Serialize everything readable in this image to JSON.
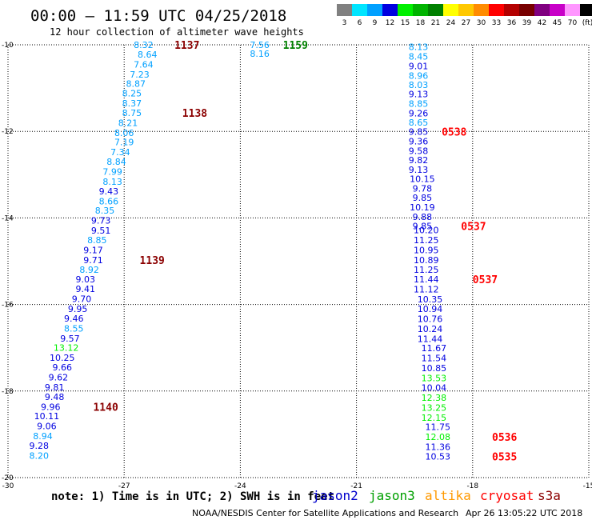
{
  "header": {
    "title": "00:00 – 11:59 UTC 04/25/2018",
    "subtitle": "12 hour collection of altimeter wave heights"
  },
  "note": "note: 1) Time is in UTC; 2) SWH is in feet",
  "footer": {
    "credit": "NOAA/NESDIS Center for Satellite Applications and Research",
    "timestamp": "Apr 26 13:05:22 UTC 2018"
  },
  "color_scale": {
    "labels": [
      "3",
      "6",
      "9",
      "12",
      "15",
      "18",
      "21",
      "24",
      "27",
      "30",
      "33",
      "36",
      "39",
      "42",
      "45",
      "70",
      "(ft)"
    ],
    "colors": [
      "#808080",
      "#00e5ff",
      "#00a0ff",
      "#0000e0",
      "#00f000",
      "#00b400",
      "#008000",
      "#ffff00",
      "#ffc800",
      "#ff8c00",
      "#ff0000",
      "#b40000",
      "#780000",
      "#800080",
      "#c800c8",
      "#ff96ff",
      "#000000"
    ]
  },
  "satellites": [
    {
      "name": "jason2",
      "color": "#0000cc"
    },
    {
      "name": "jason3",
      "color": "#00a000"
    },
    {
      "name": "altika",
      "color": "#ff9900"
    },
    {
      "name": "cryosat",
      "color": "#ff0000"
    },
    {
      "name": "s3a",
      "color": "#8b0000"
    }
  ],
  "chart_data": {
    "type": "scatter",
    "xlim": [
      -30,
      -15
    ],
    "ylim": [
      -20,
      -10
    ],
    "x_ticks": [
      "-30",
      "-27",
      "-24",
      "-21",
      "-18",
      "-15"
    ],
    "y_ticks": [
      "-10",
      "-12",
      "-14",
      "-16",
      "-18",
      "-20"
    ],
    "x_tick_values": [
      -30,
      -27,
      -24,
      -21,
      -18,
      -15
    ],
    "y_tick_values": [
      -10,
      -12,
      -14,
      -16,
      -18,
      -20
    ],
    "grid": true,
    "series": [
      {
        "points": [
          {
            "x": -26.5,
            "y": -10.0,
            "v": "8.32",
            "c": "#00a0ff"
          },
          {
            "x": -26.4,
            "y": -10.22,
            "v": "8.64",
            "c": "#00a0ff"
          },
          {
            "x": -26.5,
            "y": -10.45,
            "v": "7.64",
            "c": "#00a0ff"
          },
          {
            "x": -26.6,
            "y": -10.68,
            "v": "7.23",
            "c": "#00a0ff"
          },
          {
            "x": -26.7,
            "y": -10.9,
            "v": "8.87",
            "c": "#00a0ff"
          },
          {
            "x": -26.8,
            "y": -11.12,
            "v": "8.25",
            "c": "#00a0ff"
          },
          {
            "x": -26.8,
            "y": -11.35,
            "v": "8.37",
            "c": "#00a0ff"
          },
          {
            "x": -26.8,
            "y": -11.57,
            "v": "8.75",
            "c": "#00a0ff"
          },
          {
            "x": -26.9,
            "y": -11.8,
            "v": "8.21",
            "c": "#00a0ff"
          },
          {
            "x": -27.0,
            "y": -12.03,
            "v": "8.06",
            "c": "#00a0ff"
          },
          {
            "x": -27.0,
            "y": -12.25,
            "v": "7.19",
            "c": "#00a0ff"
          },
          {
            "x": -27.1,
            "y": -12.48,
            "v": "7.34",
            "c": "#00a0ff"
          },
          {
            "x": -27.2,
            "y": -12.7,
            "v": "8.84",
            "c": "#00a0ff"
          },
          {
            "x": -27.3,
            "y": -12.93,
            "v": "7.99",
            "c": "#00a0ff"
          },
          {
            "x": -27.3,
            "y": -13.16,
            "v": "8.13",
            "c": "#00a0ff"
          },
          {
            "x": -27.4,
            "y": -13.38,
            "v": "9.43",
            "c": "#0000e0"
          },
          {
            "x": -27.4,
            "y": -13.61,
            "v": "8.66",
            "c": "#00a0ff"
          },
          {
            "x": -27.5,
            "y": -13.83,
            "v": "8.35",
            "c": "#00a0ff"
          },
          {
            "x": -27.6,
            "y": -14.06,
            "v": "9.73",
            "c": "#0000e0"
          },
          {
            "x": -27.6,
            "y": -14.29,
            "v": "9.51",
            "c": "#0000e0"
          },
          {
            "x": -27.7,
            "y": -14.51,
            "v": "8.85",
            "c": "#00a0ff"
          },
          {
            "x": -27.8,
            "y": -14.74,
            "v": "9.17",
            "c": "#0000e0"
          },
          {
            "x": -27.8,
            "y": -14.97,
            "v": "9.71",
            "c": "#0000e0"
          },
          {
            "x": -27.9,
            "y": -15.19,
            "v": "8.92",
            "c": "#00a0ff"
          },
          {
            "x": -28.0,
            "y": -15.42,
            "v": "9.03",
            "c": "#0000e0"
          },
          {
            "x": -28.0,
            "y": -15.64,
            "v": "9.41",
            "c": "#0000e0"
          },
          {
            "x": -28.1,
            "y": -15.87,
            "v": "9.70",
            "c": "#0000e0"
          },
          {
            "x": -28.2,
            "y": -16.1,
            "v": "9.95",
            "c": "#0000e0"
          },
          {
            "x": -28.3,
            "y": -16.32,
            "v": "9.46",
            "c": "#0000e0"
          },
          {
            "x": -28.3,
            "y": -16.55,
            "v": "8.55",
            "c": "#00a0ff"
          },
          {
            "x": -28.4,
            "y": -16.78,
            "v": "9.57",
            "c": "#0000e0"
          },
          {
            "x": -28.5,
            "y": -17.0,
            "v": "13.12",
            "c": "#00f000"
          },
          {
            "x": -28.6,
            "y": -17.23,
            "v": "10.25",
            "c": "#0000e0"
          },
          {
            "x": -28.6,
            "y": -17.45,
            "v": "9.66",
            "c": "#0000e0"
          },
          {
            "x": -28.7,
            "y": -17.68,
            "v": "9.62",
            "c": "#0000e0"
          },
          {
            "x": -28.8,
            "y": -17.91,
            "v": "9.81",
            "c": "#0000e0"
          },
          {
            "x": -28.8,
            "y": -18.13,
            "v": "9.48",
            "c": "#0000e0"
          },
          {
            "x": -28.9,
            "y": -18.36,
            "v": "9.96",
            "c": "#0000e0"
          },
          {
            "x": -29.0,
            "y": -18.58,
            "v": "10.11",
            "c": "#0000e0"
          },
          {
            "x": -29.0,
            "y": -18.81,
            "v": "9.06",
            "c": "#0000e0"
          },
          {
            "x": -29.1,
            "y": -19.04,
            "v": "8.94",
            "c": "#00a0ff"
          },
          {
            "x": -29.2,
            "y": -19.26,
            "v": "9.28",
            "c": "#0000e0"
          },
          {
            "x": -29.2,
            "y": -19.49,
            "v": "8.20",
            "c": "#00a0ff"
          }
        ]
      },
      {
        "points": [
          {
            "x": -23.5,
            "y": -10.0,
            "v": "7.56",
            "c": "#00a0ff"
          },
          {
            "x": -23.5,
            "y": -10.2,
            "v": "8.16",
            "c": "#00a0ff"
          }
        ]
      },
      {
        "points": [
          {
            "x": -19.4,
            "y": -10.05,
            "v": "8.13",
            "c": "#00a0ff"
          },
          {
            "x": -19.4,
            "y": -10.27,
            "v": "8.45",
            "c": "#00a0ff"
          },
          {
            "x": -19.4,
            "y": -10.49,
            "v": "9.01",
            "c": "#0000e0"
          },
          {
            "x": -19.4,
            "y": -10.71,
            "v": "8.96",
            "c": "#00a0ff"
          },
          {
            "x": -19.4,
            "y": -10.92,
            "v": "8.03",
            "c": "#00a0ff"
          },
          {
            "x": -19.4,
            "y": -11.14,
            "v": "9.13",
            "c": "#0000e0"
          },
          {
            "x": -19.4,
            "y": -11.36,
            "v": "8.85",
            "c": "#00a0ff"
          },
          {
            "x": -19.4,
            "y": -11.58,
            "v": "9.26",
            "c": "#0000e0"
          },
          {
            "x": -19.4,
            "y": -11.79,
            "v": "8.65",
            "c": "#00a0ff"
          },
          {
            "x": -19.4,
            "y": -12.01,
            "v": "9.85",
            "c": "#0000e0"
          },
          {
            "x": -19.4,
            "y": -12.23,
            "v": "9.36",
            "c": "#0000e0"
          },
          {
            "x": -19.4,
            "y": -12.45,
            "v": "9.58",
            "c": "#0000e0"
          },
          {
            "x": -19.4,
            "y": -12.66,
            "v": "9.82",
            "c": "#0000e0"
          },
          {
            "x": -19.4,
            "y": -12.88,
            "v": "9.13",
            "c": "#0000e0"
          },
          {
            "x": -19.3,
            "y": -13.1,
            "v": "10.15",
            "c": "#0000e0"
          },
          {
            "x": -19.3,
            "y": -13.32,
            "v": "9.78",
            "c": "#0000e0"
          },
          {
            "x": -19.3,
            "y": -13.53,
            "v": "9.85",
            "c": "#0000e0"
          },
          {
            "x": -19.3,
            "y": -13.75,
            "v": "10.19",
            "c": "#0000e0"
          },
          {
            "x": -19.3,
            "y": -13.97,
            "v": "9.88",
            "c": "#0000e0"
          },
          {
            "x": -19.3,
            "y": -14.19,
            "v": "9.85",
            "c": "#0000e0"
          },
          {
            "x": -19.2,
            "y": -14.28,
            "v": "10.20",
            "c": "#0000e0"
          },
          {
            "x": -19.2,
            "y": -14.51,
            "v": "11.25",
            "c": "#0000e0"
          },
          {
            "x": -19.2,
            "y": -14.74,
            "v": "10.95",
            "c": "#0000e0"
          },
          {
            "x": -19.2,
            "y": -14.97,
            "v": "10.89",
            "c": "#0000e0"
          },
          {
            "x": -19.2,
            "y": -15.19,
            "v": "11.25",
            "c": "#0000e0"
          },
          {
            "x": -19.2,
            "y": -15.42,
            "v": "11.44",
            "c": "#0000e0"
          },
          {
            "x": -19.2,
            "y": -15.65,
            "v": "11.12",
            "c": "#0000e0"
          },
          {
            "x": -19.1,
            "y": -15.88,
            "v": "10.35",
            "c": "#0000e0"
          },
          {
            "x": -19.1,
            "y": -16.1,
            "v": "10.94",
            "c": "#0000e0"
          },
          {
            "x": -19.1,
            "y": -16.33,
            "v": "10.76",
            "c": "#0000e0"
          },
          {
            "x": -19.1,
            "y": -16.56,
            "v": "10.24",
            "c": "#0000e0"
          },
          {
            "x": -19.1,
            "y": -16.79,
            "v": "11.44",
            "c": "#0000e0"
          },
          {
            "x": -19.0,
            "y": -17.01,
            "v": "11.67",
            "c": "#0000e0"
          },
          {
            "x": -19.0,
            "y": -17.24,
            "v": "11.54",
            "c": "#0000e0"
          },
          {
            "x": -19.0,
            "y": -17.47,
            "v": "10.85",
            "c": "#0000e0"
          },
          {
            "x": -19.0,
            "y": -17.7,
            "v": "13.53",
            "c": "#00f000"
          },
          {
            "x": -19.0,
            "y": -17.92,
            "v": "10.04",
            "c": "#0000e0"
          },
          {
            "x": -19.0,
            "y": -18.15,
            "v": "12.38",
            "c": "#00f000"
          },
          {
            "x": -19.0,
            "y": -18.38,
            "v": "13.25",
            "c": "#00f000"
          },
          {
            "x": -19.0,
            "y": -18.61,
            "v": "12.15",
            "c": "#00f000"
          },
          {
            "x": -18.9,
            "y": -18.83,
            "v": "11.75",
            "c": "#0000e0"
          },
          {
            "x": -18.9,
            "y": -19.06,
            "v": "12.08",
            "c": "#00f000"
          },
          {
            "x": -18.9,
            "y": -19.29,
            "v": "11.36",
            "c": "#0000e0"
          },
          {
            "x": -18.9,
            "y": -19.51,
            "v": "10.53",
            "c": "#0000e0"
          }
        ]
      }
    ],
    "time_labels": [
      {
        "text": "1137",
        "x": -25.7,
        "y": -10.0,
        "color": "#8b0000"
      },
      {
        "text": "1138",
        "x": -25.5,
        "y": -11.57,
        "color": "#8b0000"
      },
      {
        "text": "1139",
        "x": -26.6,
        "y": -14.97,
        "color": "#8b0000"
      },
      {
        "text": "1140",
        "x": -27.8,
        "y": -18.36,
        "color": "#8b0000"
      },
      {
        "text": "1159",
        "x": -22.9,
        "y": -10.0,
        "color": "#008000"
      },
      {
        "text": "0538",
        "x": -18.8,
        "y": -12.01,
        "color": "#ff0000"
      },
      {
        "text": "0537",
        "x": -18.3,
        "y": -14.19,
        "color": "#ff0000"
      },
      {
        "text": "0537",
        "x": -18.0,
        "y": -15.42,
        "color": "#ff0000"
      },
      {
        "text": "0536",
        "x": -17.5,
        "y": -19.06,
        "color": "#ff0000"
      },
      {
        "text": "0535",
        "x": -17.5,
        "y": -19.51,
        "color": "#ff0000"
      }
    ]
  }
}
